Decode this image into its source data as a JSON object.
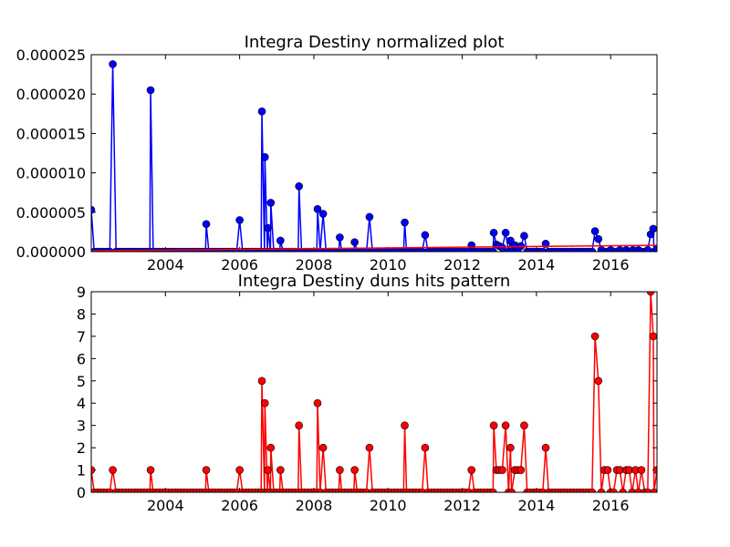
{
  "chart_data": [
    {
      "type": "line",
      "title": "Integra Destiny normalized plot",
      "xlabel": "",
      "ylabel": "",
      "xlim": [
        2002.0,
        2017.25
      ],
      "ylim": [
        0,
        2.5e-05
      ],
      "x_ticks": [
        2004,
        2006,
        2008,
        2010,
        2012,
        2014,
        2016
      ],
      "x_tick_labels": [
        "2004",
        "2006",
        "2008",
        "2010",
        "2012",
        "2014",
        "2016"
      ],
      "y_ticks": [
        0,
        5e-06,
        1e-05,
        1.5e-05,
        2e-05,
        2.5e-05
      ],
      "y_tick_labels": [
        "0.000000",
        "0.000005",
        "0.000010",
        "0.000015",
        "0.000020",
        "0.000025"
      ],
      "grid": false,
      "series": [
        {
          "name": "",
          "color": "#0000ff",
          "marker": "circle",
          "x": [
            2002.0,
            2002.58,
            2003.6,
            2005.1,
            2006.0,
            2006.6,
            2006.68,
            2006.76,
            2006.84,
            2007.1,
            2007.6,
            2008.1,
            2008.25,
            2008.7,
            2009.1,
            2009.5,
            2010.45,
            2011.0,
            2012.25,
            2012.85,
            2012.92,
            2013.0,
            2013.08,
            2013.17,
            2013.3,
            2013.42,
            2013.58,
            2013.67,
            2014.25,
            2015.58,
            2015.67,
            2015.75,
            2016.0,
            2016.25,
            2016.42,
            2016.6,
            2016.75,
            2017.0,
            2017.08,
            2017.15,
            2017.25
          ],
          "y": [
            5.3e-06,
            2.38e-05,
            2.05e-05,
            3.5e-06,
            4e-06,
            1.78e-05,
            1.2e-05,
            3e-06,
            6.2e-06,
            1.4e-06,
            8.3e-06,
            5.4e-06,
            4.8e-06,
            1.8e-06,
            1.2e-06,
            4.4e-06,
            3.7e-06,
            2.1e-06,
            8e-07,
            2.4e-06,
            9e-07,
            7e-07,
            5e-07,
            2.4e-06,
            1.4e-06,
            8e-07,
            7e-07,
            2e-06,
            1e-06,
            2.6e-06,
            1.6e-06,
            2e-07,
            2e-07,
            2e-07,
            2e-07,
            2e-07,
            2e-07,
            2e-07,
            2.2e-06,
            2.9e-06,
            4e-07
          ]
        },
        {
          "name": "",
          "color": "#ff0000",
          "marker": "none",
          "x": [
            2002.0,
            2017.25
          ],
          "y": [
            1e-07,
            8e-07
          ]
        }
      ]
    },
    {
      "type": "line",
      "title": "Integra Destiny duns hits pattern",
      "xlabel": "",
      "ylabel": "",
      "xlim": [
        2002.0,
        2017.25
      ],
      "ylim": [
        0,
        9
      ],
      "x_ticks": [
        2004,
        2006,
        2008,
        2010,
        2012,
        2014,
        2016
      ],
      "x_tick_labels": [
        "2004",
        "2006",
        "2008",
        "2010",
        "2012",
        "2014",
        "2016"
      ],
      "y_ticks": [
        0,
        1,
        2,
        3,
        4,
        5,
        6,
        7,
        8,
        9
      ],
      "y_tick_labels": [
        "0",
        "1",
        "2",
        "3",
        "4",
        "5",
        "6",
        "7",
        "8",
        "9"
      ],
      "grid": false,
      "series": [
        {
          "name": "",
          "color": "#ff0000",
          "marker": "circle",
          "x": [
            2002.0,
            2002.58,
            2003.6,
            2005.1,
            2006.0,
            2006.6,
            2006.68,
            2006.76,
            2006.84,
            2007.1,
            2007.6,
            2008.1,
            2008.25,
            2008.7,
            2009.1,
            2009.5,
            2010.45,
            2011.0,
            2012.25,
            2012.85,
            2012.92,
            2013.0,
            2013.08,
            2013.17,
            2013.3,
            2013.42,
            2013.5,
            2013.58,
            2013.67,
            2014.25,
            2015.58,
            2015.67,
            2015.83,
            2015.92,
            2016.17,
            2016.25,
            2016.42,
            2016.5,
            2016.67,
            2016.83,
            2017.08,
            2017.15,
            2017.25
          ],
          "y": [
            1,
            1,
            1,
            1,
            1,
            5,
            4,
            1,
            2,
            1,
            3,
            4,
            2,
            1,
            1,
            2,
            3,
            2,
            1,
            3,
            1,
            1,
            1,
            3,
            2,
            1,
            1,
            1,
            3,
            2,
            7,
            5,
            1,
            1,
            1,
            1,
            1,
            1,
            1,
            1,
            9,
            7,
            1
          ]
        }
      ]
    }
  ]
}
